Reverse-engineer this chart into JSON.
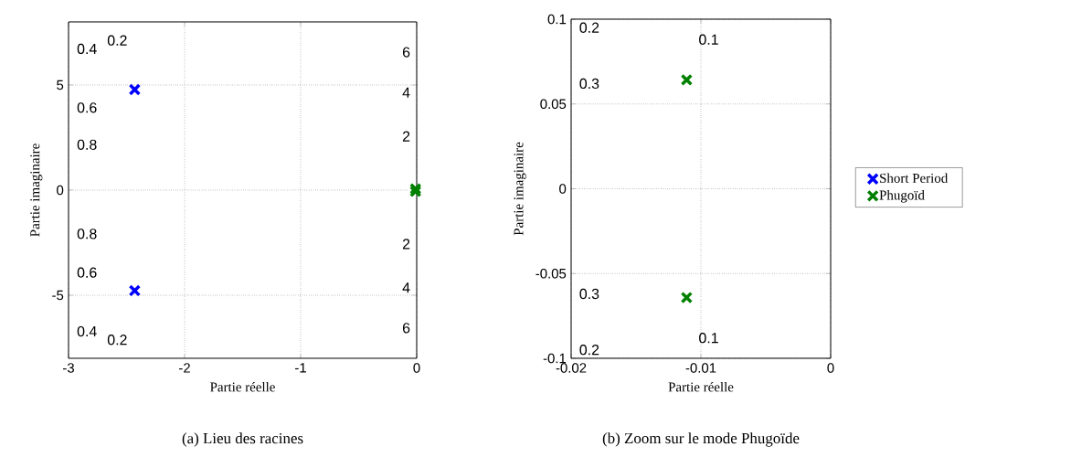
{
  "chart_data": [
    {
      "type": "scatter",
      "xlabel": "Partie réelle",
      "ylabel": "Partie imaginaire",
      "xlim": [
        -3,
        0
      ],
      "ylim": [
        -8,
        8
      ],
      "xticks": [
        -3,
        -2,
        -1,
        0
      ],
      "yticks": [
        -5,
        0,
        5
      ],
      "grid": true,
      "marker": "cross",
      "legend": "right",
      "series": [
        {
          "name": "Short Period",
          "color": "#0000ff",
          "x": [
            -2.43,
            -2.43
          ],
          "values": [
            4.78,
            -4.78
          ]
        },
        {
          "name": "Phugoïd",
          "color": "#008000",
          "x": [
            -0.01,
            -0.01
          ],
          "values": [
            0.06,
            -0.06
          ]
        }
      ],
      "annotations": [
        "0.4",
        "0.6",
        "0.8",
        "0.8",
        "0.6",
        "0.4",
        "0.2",
        "0.2",
        "6",
        "4",
        "2",
        "2",
        "4",
        "6",
        "(a) Lieu des racines"
      ]
    },
    {
      "type": "scatter",
      "xlabel": "Partie réelle",
      "ylabel": "Partie imaginaire",
      "xlim": [
        -0.02,
        0
      ],
      "ylim": [
        -0.1,
        0.1
      ],
      "xticks": [
        -0.02,
        -0.01,
        0
      ],
      "yticks": [
        -0.1,
        -0.05,
        0,
        0.05,
        0.1
      ],
      "grid": true,
      "marker": "cross",
      "legend": false,
      "series": [
        {
          "color": "#008000",
          "x": [
            -0.0111,
            -0.0111
          ],
          "values": [
            0.0642,
            -0.0642
          ]
        }
      ],
      "annotations": [
        "0.2",
        "0.3",
        "0.1",
        "0.3",
        "0.1",
        "0.2",
        "(b) Zoom sur le mode Phugoïde"
      ]
    }
  ]
}
